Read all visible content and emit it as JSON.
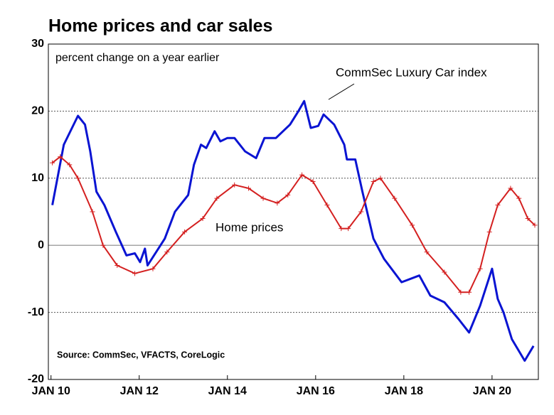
{
  "chart_data": {
    "type": "line",
    "title": "Home prices and car sales",
    "subtitle": "percent change on a year earlier",
    "source": "Source: CommSec, VFACTS, CoreLogic",
    "xlim": [
      2009.94,
      2021.05
    ],
    "ylim": [
      -20,
      30
    ],
    "xticks": [
      {
        "value": 2010,
        "label": "JAN 10"
      },
      {
        "value": 2012,
        "label": "JAN 12"
      },
      {
        "value": 2014,
        "label": "JAN 14"
      },
      {
        "value": 2016,
        "label": "JAN 16"
      },
      {
        "value": 2018,
        "label": "JAN 18"
      },
      {
        "value": 2020,
        "label": "JAN 20"
      }
    ],
    "yticks": [
      30,
      20,
      10,
      0,
      -10,
      -20
    ],
    "grid": true,
    "series": [
      {
        "name": "CommSec Luxury Car index",
        "color": "#0a14d2",
        "x": [
          2010.03,
          2010.29,
          2010.61,
          2010.77,
          2010.89,
          2011.03,
          2011.21,
          2011.47,
          2011.71,
          2011.9,
          2012.02,
          2012.13,
          2012.19,
          2012.58,
          2012.81,
          2013.11,
          2013.24,
          2013.4,
          2013.52,
          2013.71,
          2013.84,
          2014.0,
          2014.16,
          2014.4,
          2014.65,
          2014.84,
          2015.1,
          2015.42,
          2015.61,
          2015.74,
          2015.89,
          2016.06,
          2016.18,
          2016.42,
          2016.65,
          2016.71,
          2016.9,
          2017.06,
          2017.31,
          2017.55,
          2017.95,
          2018.35,
          2018.6,
          2018.92,
          2019.24,
          2019.48,
          2019.73,
          2020.0,
          2020.13,
          2020.26,
          2020.45,
          2020.74,
          2020.94
        ],
        "values": [
          6,
          15,
          19.3,
          18,
          14,
          8,
          6,
          2,
          -1.5,
          -1.2,
          -2.5,
          -0.5,
          -3,
          1,
          5,
          7.5,
          12,
          15,
          14.5,
          17,
          15.5,
          16,
          16,
          14,
          13,
          16,
          16,
          18,
          20,
          21.5,
          17.5,
          17.8,
          19.5,
          18,
          15,
          12.8,
          12.8,
          8,
          1,
          -2,
          -5.5,
          -4.5,
          -7.5,
          -8.5,
          -11,
          -13,
          -9,
          -3.5,
          -8,
          -10,
          -14,
          -17.2,
          -15
        ]
      },
      {
        "name": "Home prices",
        "color": "#d42020",
        "x": [
          2010.03,
          2010.21,
          2010.42,
          2010.61,
          2010.94,
          2011.18,
          2011.5,
          2011.9,
          2012.31,
          2012.63,
          2013.03,
          2013.44,
          2013.76,
          2014.16,
          2014.48,
          2014.81,
          2015.13,
          2015.37,
          2015.69,
          2015.94,
          2016.26,
          2016.58,
          2016.74,
          2017.03,
          2017.31,
          2017.47,
          2017.79,
          2018.19,
          2018.52,
          2018.92,
          2019.29,
          2019.48,
          2019.73,
          2019.94,
          2020.13,
          2020.42,
          2020.61,
          2020.81,
          2020.97
        ],
        "values": [
          12.3,
          13.2,
          12,
          10,
          5,
          0,
          -3,
          -4.2,
          -3.5,
          -1,
          2,
          4,
          7,
          9,
          8.5,
          7,
          6.3,
          7.5,
          10.5,
          9.5,
          6,
          2.5,
          2.5,
          5,
          9.5,
          10,
          7,
          3,
          -1,
          -4,
          -7,
          -7,
          -3.5,
          2,
          6,
          8.5,
          7,
          4,
          3
        ]
      }
    ]
  }
}
